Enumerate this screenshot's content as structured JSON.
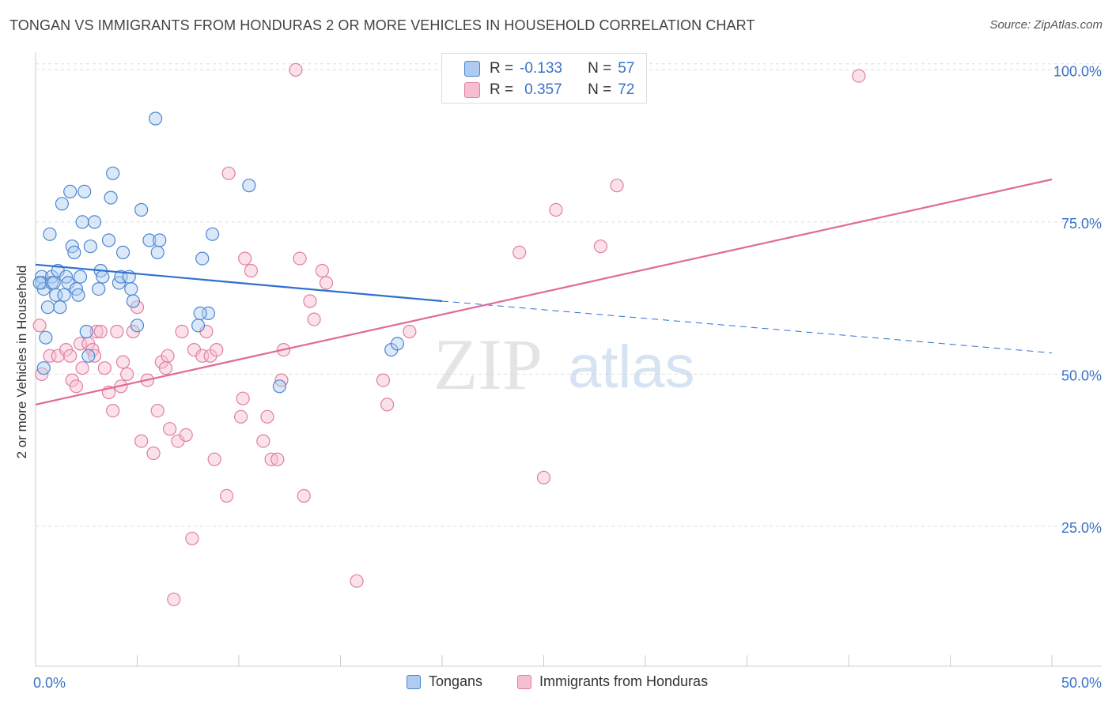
{
  "title": "TONGAN VS IMMIGRANTS FROM HONDURAS 2 OR MORE VEHICLES IN HOUSEHOLD CORRELATION CHART",
  "source": "Source: ZipAtlas.com",
  "watermark": {
    "zip": "ZIP",
    "atlas": "atlas"
  },
  "stats": {
    "tongans": {
      "r_label": "R =",
      "r": "-0.133",
      "n_label": "N =",
      "n": "57"
    },
    "honduras": {
      "r_label": "R =",
      "r": "0.357",
      "n_label": "N =",
      "n": "72"
    }
  },
  "legend": {
    "tongans": "Tongans",
    "honduras": "Immigrants from Honduras"
  },
  "colors": {
    "blue_fill": "#aecbf0",
    "blue_stroke": "#4d86d1",
    "blue_line": "#2f6fd0",
    "pink_fill": "#f6bfd0",
    "pink_stroke": "#e07fa0",
    "pink_line": "#e06b94",
    "axis_text": "#3a72c8",
    "grid": "#dddddd"
  },
  "chart_data": {
    "type": "scatter",
    "title": "TONGAN VS IMMIGRANTS FROM HONDURAS 2 OR MORE VEHICLES IN HOUSEHOLD CORRELATION CHART",
    "xlabel": "",
    "ylabel": "2 or more Vehicles in Household",
    "xlim": [
      0,
      50
    ],
    "ylim": [
      2,
      102
    ],
    "x_tick_labels": [
      {
        "value": 0,
        "label": "0.0%"
      },
      {
        "value": 50,
        "label": "50.0%"
      }
    ],
    "y_tick_labels": [
      {
        "value": 25,
        "label": "25.0%"
      },
      {
        "value": 50,
        "label": "50.0%"
      },
      {
        "value": 75,
        "label": "75.0%"
      },
      {
        "value": 100,
        "label": "100.0%"
      }
    ],
    "series": [
      {
        "name": "Tongans",
        "points": [
          [
            0.3,
            66
          ],
          [
            0.3,
            65
          ],
          [
            0.4,
            64
          ],
          [
            0.4,
            51
          ],
          [
            0.6,
            61
          ],
          [
            0.7,
            73
          ],
          [
            0.8,
            66
          ],
          [
            0.8,
            65
          ],
          [
            0.9,
            65
          ],
          [
            1.0,
            63
          ],
          [
            1.1,
            67
          ],
          [
            1.2,
            61
          ],
          [
            1.3,
            78
          ],
          [
            1.4,
            63
          ],
          [
            1.5,
            66
          ],
          [
            1.6,
            65
          ],
          [
            1.7,
            80
          ],
          [
            1.8,
            71
          ],
          [
            1.9,
            70
          ],
          [
            2.0,
            64
          ],
          [
            2.1,
            63
          ],
          [
            2.2,
            66
          ],
          [
            2.3,
            75
          ],
          [
            2.4,
            80
          ],
          [
            2.5,
            57
          ],
          [
            2.6,
            53
          ],
          [
            2.7,
            71
          ],
          [
            2.9,
            75
          ],
          [
            3.1,
            64
          ],
          [
            3.2,
            67
          ],
          [
            3.3,
            66
          ],
          [
            3.6,
            72
          ],
          [
            3.7,
            79
          ],
          [
            3.8,
            83
          ],
          [
            4.1,
            65
          ],
          [
            4.2,
            66
          ],
          [
            4.3,
            70
          ],
          [
            4.6,
            66
          ],
          [
            4.7,
            64
          ],
          [
            4.8,
            62
          ],
          [
            5.2,
            77
          ],
          [
            5.6,
            72
          ],
          [
            5.9,
            92
          ],
          [
            6.0,
            70
          ],
          [
            6.1,
            72
          ],
          [
            8.0,
            58
          ],
          [
            8.2,
            69
          ],
          [
            8.5,
            60
          ],
          [
            8.7,
            73
          ],
          [
            8.1,
            60
          ],
          [
            10.5,
            81
          ],
          [
            12.0,
            48
          ],
          [
            17.5,
            54
          ],
          [
            17.8,
            55
          ],
          [
            0.5,
            56
          ],
          [
            0.2,
            65
          ],
          [
            5.0,
            58
          ]
        ]
      },
      {
        "name": "Immigrants from Honduras",
        "points": [
          [
            0.2,
            58
          ],
          [
            0.3,
            50
          ],
          [
            0.7,
            53
          ],
          [
            1.1,
            53
          ],
          [
            1.5,
            54
          ],
          [
            1.7,
            53
          ],
          [
            1.8,
            49
          ],
          [
            2.0,
            48
          ],
          [
            2.2,
            55
          ],
          [
            2.3,
            51
          ],
          [
            2.6,
            55
          ],
          [
            2.8,
            54
          ],
          [
            3.0,
            57
          ],
          [
            3.2,
            57
          ],
          [
            3.4,
            51
          ],
          [
            3.6,
            47
          ],
          [
            3.8,
            44
          ],
          [
            4.0,
            57
          ],
          [
            4.3,
            52
          ],
          [
            4.5,
            50
          ],
          [
            4.8,
            57
          ],
          [
            5.0,
            61
          ],
          [
            5.2,
            39
          ],
          [
            5.5,
            49
          ],
          [
            5.8,
            37
          ],
          [
            6.0,
            44
          ],
          [
            6.2,
            52
          ],
          [
            6.4,
            51
          ],
          [
            6.5,
            53
          ],
          [
            6.6,
            41
          ],
          [
            6.8,
            13
          ],
          [
            7.0,
            39
          ],
          [
            7.2,
            57
          ],
          [
            7.4,
            40
          ],
          [
            7.7,
            23
          ],
          [
            7.8,
            54
          ],
          [
            8.2,
            53
          ],
          [
            8.4,
            57
          ],
          [
            8.6,
            53
          ],
          [
            8.8,
            36
          ],
          [
            8.9,
            54
          ],
          [
            9.4,
            30
          ],
          [
            9.5,
            83
          ],
          [
            10.1,
            43
          ],
          [
            10.2,
            46
          ],
          [
            10.3,
            69
          ],
          [
            10.6,
            67
          ],
          [
            11.2,
            39
          ],
          [
            11.4,
            43
          ],
          [
            11.6,
            36
          ],
          [
            11.9,
            36
          ],
          [
            12.1,
            49
          ],
          [
            12.2,
            54
          ],
          [
            12.8,
            100
          ],
          [
            13.0,
            69
          ],
          [
            13.2,
            30
          ],
          [
            13.5,
            62
          ],
          [
            13.7,
            59
          ],
          [
            14.1,
            67
          ],
          [
            14.3,
            65
          ],
          [
            15.8,
            16
          ],
          [
            17.1,
            49
          ],
          [
            17.3,
            45
          ],
          [
            18.4,
            57
          ],
          [
            23.8,
            70
          ],
          [
            25.0,
            33
          ],
          [
            25.6,
            77
          ],
          [
            27.8,
            71
          ],
          [
            28.6,
            81
          ],
          [
            40.5,
            99
          ],
          [
            2.9,
            53
          ],
          [
            4.2,
            48
          ]
        ]
      }
    ],
    "trendlines": [
      {
        "series": "Tongans",
        "x_start": 0,
        "y_start": 68.0,
        "x_solid_end": 20.0,
        "y_solid_end": 62.0,
        "x_end": 50,
        "y_end": 53.5
      },
      {
        "series": "Immigrants from Honduras",
        "x_start": 0,
        "y_start": 45.0,
        "x_end": 50,
        "y_end": 82.0
      }
    ]
  }
}
